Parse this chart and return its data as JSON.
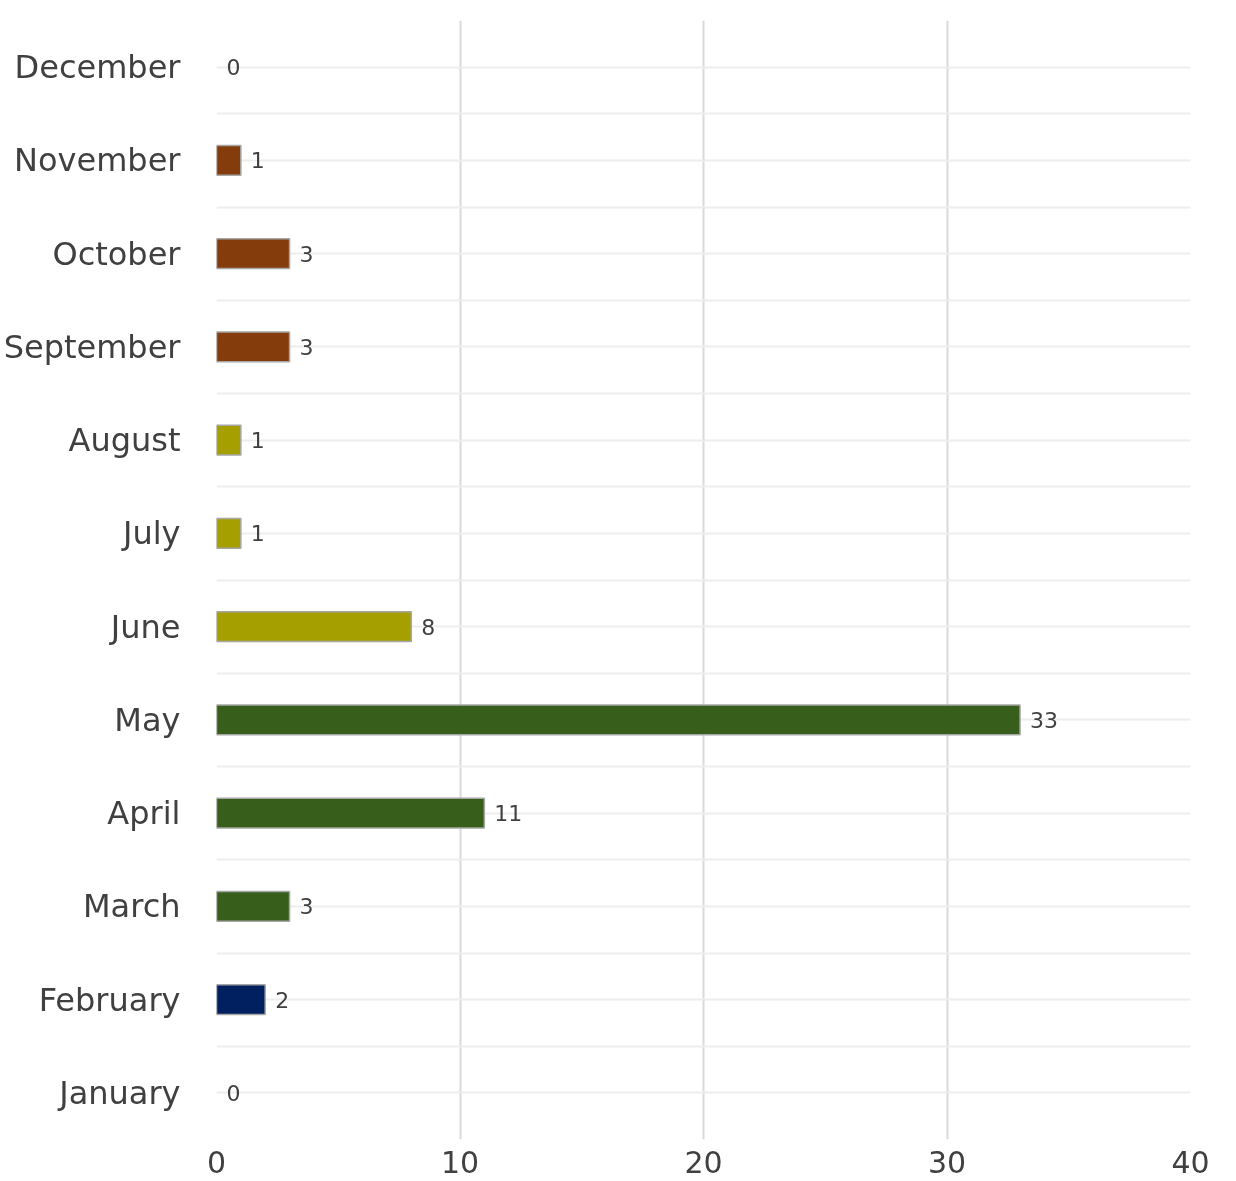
{
  "chart_data": {
    "type": "bar",
    "orientation": "horizontal",
    "categories": [
      "December",
      "November",
      "October",
      "September",
      "August",
      "July",
      "June",
      "May",
      "April",
      "March",
      "February",
      "January"
    ],
    "values": [
      0,
      1,
      3,
      3,
      1,
      1,
      8,
      33,
      11,
      3,
      2,
      0
    ],
    "colors": [
      null,
      "#843c0c",
      "#843c0c",
      "#843c0c",
      "#a5a000",
      "#a5a000",
      "#a5a000",
      "#375f1b",
      "#375f1b",
      "#375f1b",
      "#002060",
      null
    ],
    "xlim": [
      0,
      40
    ],
    "xticks": [
      0,
      10,
      20,
      30,
      40
    ],
    "grid": true,
    "data_labels": true
  }
}
